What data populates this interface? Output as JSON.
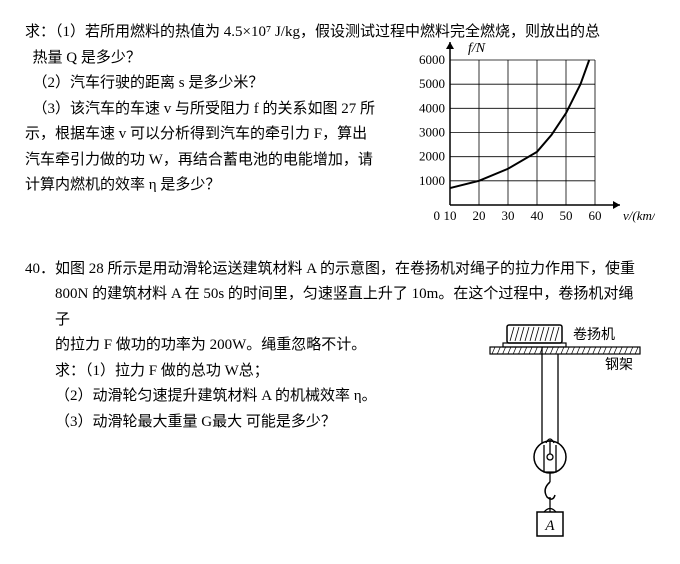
{
  "q39": {
    "intro": "求：（1）若所用燃料的热值为 4.5×10⁷ J/kg，假设测试过程中燃料完全燃烧，则放出的总",
    "intro2": "热量 Q 是多少？",
    "p2": "（2）汽车行驶的距离 s 是多少米？",
    "p3a": "（3）该汽车的车速 v 与所受阻力 f 的关系如图 27 所",
    "p3b": "示，根据车速 v 可以分析得到汽车的牵引力 F，算出",
    "p3c": "汽车牵引力做的功 W，再结合蓄电池的电能增加，请",
    "p3d": "计算内燃机的效率 η 是多少？",
    "chart": {
      "ylabel": "f/N",
      "xlabel": "v/(km/h)",
      "ymax": 6000,
      "ystep": 1000,
      "xmin": 10,
      "xmax": 60,
      "xstep": 10,
      "xticks": [
        "10",
        "20",
        "30",
        "40",
        "50",
        "60"
      ],
      "yticks": [
        "1000",
        "2000",
        "3000",
        "4000",
        "5000",
        "6000"
      ],
      "curve": [
        [
          10,
          700
        ],
        [
          20,
          1000
        ],
        [
          30,
          1500
        ],
        [
          40,
          2200
        ],
        [
          45,
          2900
        ],
        [
          50,
          3800
        ],
        [
          55,
          5000
        ],
        [
          58,
          6000
        ]
      ],
      "axis_color": "#000",
      "grid_color": "#000",
      "curve_color": "#000",
      "curve_width": 2,
      "font_size": 13
    }
  },
  "q40": {
    "num": "40．",
    "l1": "如图 28 所示是用动滑轮运送建筑材料 A 的示意图，在卷扬机对绳子的拉力作用下，使重",
    "l2": "800N 的建筑材料 A 在 50s 的时间里，匀速竖直上升了 10m。在这个过程中，卷扬机对绳子",
    "l3": "的拉力 F 做功的功率为 200W。绳重忽略不计。",
    "p1": "求：（1）拉力 F 做的总功 W总；",
    "p2": "（2）动滑轮匀速提升建筑材料 A 的机械效率 η。",
    "p3": "（3）动滑轮最大重量 G最大 可能是多少？",
    "diagram": {
      "winch_label": "卷扬机",
      "beam_label": "钢架",
      "box_label": "A",
      "stroke": "#000",
      "fill_hatch": "#000",
      "font_size": 14
    }
  }
}
